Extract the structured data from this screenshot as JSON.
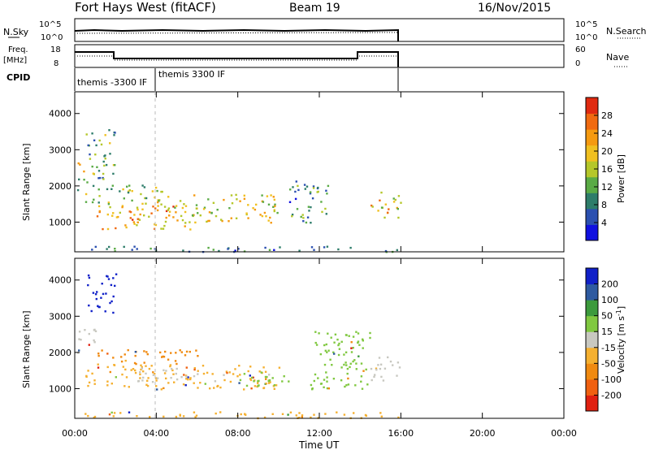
{
  "header": {
    "station": "Fort Hays West (fitACF)",
    "beam": "Beam 19",
    "date": "16/Nov/2015"
  },
  "top_panels": {
    "nsky_label": "N.Sky",
    "nsky_ticks": [
      "10^5",
      "10^0"
    ],
    "nsearch_label": "N.Search",
    "nsearch_ticks": [
      "10^5",
      "10^0"
    ],
    "freq_label_1": "Freq.",
    "freq_label_2": "[MHz]",
    "freq_ticks": [
      "18",
      "8"
    ],
    "nave_label": "Nave",
    "nave_ticks": [
      "60",
      "0"
    ],
    "cpid_label": "CPID",
    "cpid_1": "themis -3300 IF",
    "cpid_2": "themis 3300 IF"
  },
  "chart_data": [
    {
      "type": "heatmap",
      "name": "power",
      "ylabel": "Slant Range [km]",
      "y_ticks": [
        "1000",
        "2000",
        "3000",
        "4000"
      ],
      "ylim": [
        180,
        4600
      ],
      "xlim": [
        "00:00",
        "24:00"
      ],
      "colorbar_label": "Power [dB]",
      "colorbar_ticks": [
        "4",
        "8",
        "12",
        "16",
        "20",
        "24",
        "28"
      ],
      "colorbar_colors": [
        "#1010e0",
        "#2b50b0",
        "#2e7d6a",
        "#5aab45",
        "#b5c72a",
        "#f0c020",
        "#f59a10",
        "#f06a10",
        "#e02a10"
      ],
      "colorbar_range": [
        0,
        32
      ],
      "bands": [
        {
          "t0": 0.1,
          "t1": 0.5,
          "r0": 1900,
          "r1": 2800,
          "level": 16
        },
        {
          "t0": 0.5,
          "t1": 2.0,
          "r0": 2100,
          "r1": 3600,
          "level": 12
        },
        {
          "t0": 0.5,
          "t1": 4.5,
          "r0": 1500,
          "r1": 2100,
          "level": 14
        },
        {
          "t0": 1.0,
          "t1": 6.0,
          "r0": 800,
          "r1": 1500,
          "level": 22
        },
        {
          "t0": 4.0,
          "t1": 10.0,
          "r0": 1000,
          "r1": 1800,
          "level": 18
        },
        {
          "t0": 10.5,
          "t1": 12.5,
          "r0": 1000,
          "r1": 2200,
          "level": 10
        },
        {
          "t0": 14.5,
          "t1": 16.0,
          "r0": 1100,
          "r1": 1900,
          "level": 20
        },
        {
          "t0": 0.2,
          "t1": 16.0,
          "r0": 200,
          "r1": 350,
          "level": 8
        }
      ]
    },
    {
      "type": "heatmap",
      "name": "velocity",
      "ylabel": "Slant Range [km]",
      "y_ticks": [
        "1000",
        "2000",
        "3000",
        "4000"
      ],
      "ylim": [
        180,
        4600
      ],
      "xlim": [
        "00:00",
        "24:00"
      ],
      "x_ticks": [
        "00:00",
        "04:00",
        "08:00",
        "12:00",
        "16:00",
        "20:00",
        "00:00"
      ],
      "xlabel": "Time UT",
      "colorbar_label": "Velocity [m s-1]",
      "colorbar_label_main": "Velocity [m s",
      "colorbar_label_sup": "-1",
      "colorbar_label_end": "]",
      "colorbar_ticks": [
        "-200",
        "-100",
        "-50",
        "-15",
        "15",
        "50",
        "100",
        "200"
      ],
      "colorbar_colors": [
        "#e02010",
        "#f06010",
        "#f08a10",
        "#f5b030",
        "#c8c8c0",
        "#80c840",
        "#3c9a3c",
        "#2e5aa0",
        "#1020c8"
      ],
      "bands": [
        {
          "t0": 0.6,
          "t1": 2.0,
          "r0": 3100,
          "r1": 4200,
          "level": "#1020c8"
        },
        {
          "t0": 0.1,
          "t1": 1.0,
          "r0": 1900,
          "r1": 2700,
          "level": "#c8c8c0"
        },
        {
          "t0": 1.0,
          "t1": 6.0,
          "r0": 1700,
          "r1": 2100,
          "level": "#f08a10"
        },
        {
          "t0": 0.5,
          "t1": 10.0,
          "r0": 1000,
          "r1": 1700,
          "level": "#f5b030"
        },
        {
          "t0": 3.0,
          "t1": 6.0,
          "r0": 1200,
          "r1": 1600,
          "level": "#c8c8c0"
        },
        {
          "t0": 8.0,
          "t1": 10.5,
          "r0": 1000,
          "r1": 1500,
          "level": "#80c840"
        },
        {
          "t0": 14.5,
          "t1": 16.0,
          "r0": 1200,
          "r1": 1900,
          "level": "#c8c8c0"
        },
        {
          "t0": 11.5,
          "t1": 14.5,
          "r0": 1000,
          "r1": 2600,
          "level": "#80c840"
        },
        {
          "t0": 0.2,
          "t1": 16.0,
          "r0": 200,
          "r1": 380,
          "level": "#f5b030"
        }
      ]
    }
  ]
}
